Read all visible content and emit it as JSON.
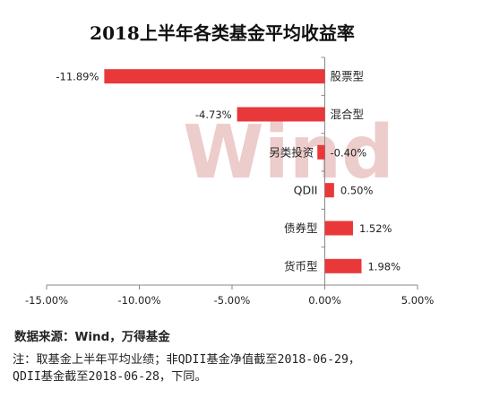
{
  "chart_data": {
    "type": "bar",
    "orientation": "horizontal",
    "title": "2018上半年各类基金平均收益率",
    "categories": [
      "股票型",
      "混合型",
      "另类投资",
      "QDII",
      "债券型",
      "货币型"
    ],
    "values": [
      -11.89,
      -4.73,
      -0.4,
      0.5,
      1.52,
      1.98
    ],
    "value_labels": [
      "-11.89%",
      "-4.73%",
      "-0.40%",
      "0.50%",
      "1.52%",
      "1.98%"
    ],
    "xlim": [
      -15,
      5
    ],
    "x_ticks": [
      -15,
      -10,
      -5,
      0,
      5
    ],
    "x_tick_labels": [
      "-15.00%",
      "-10.00%",
      "-5.00%",
      "0.00%",
      "5.00%"
    ],
    "bar_color": "#e8383a",
    "grid": false,
    "legend": "none"
  },
  "watermark": "Wind",
  "source_text": "数据来源：Wind，万得基金",
  "note_lines": [
    "注：取基金上半年平均业绩；非QDII基金净值截至2018-06-29，",
    "QDII基金截至2018-06-28，下同。"
  ]
}
